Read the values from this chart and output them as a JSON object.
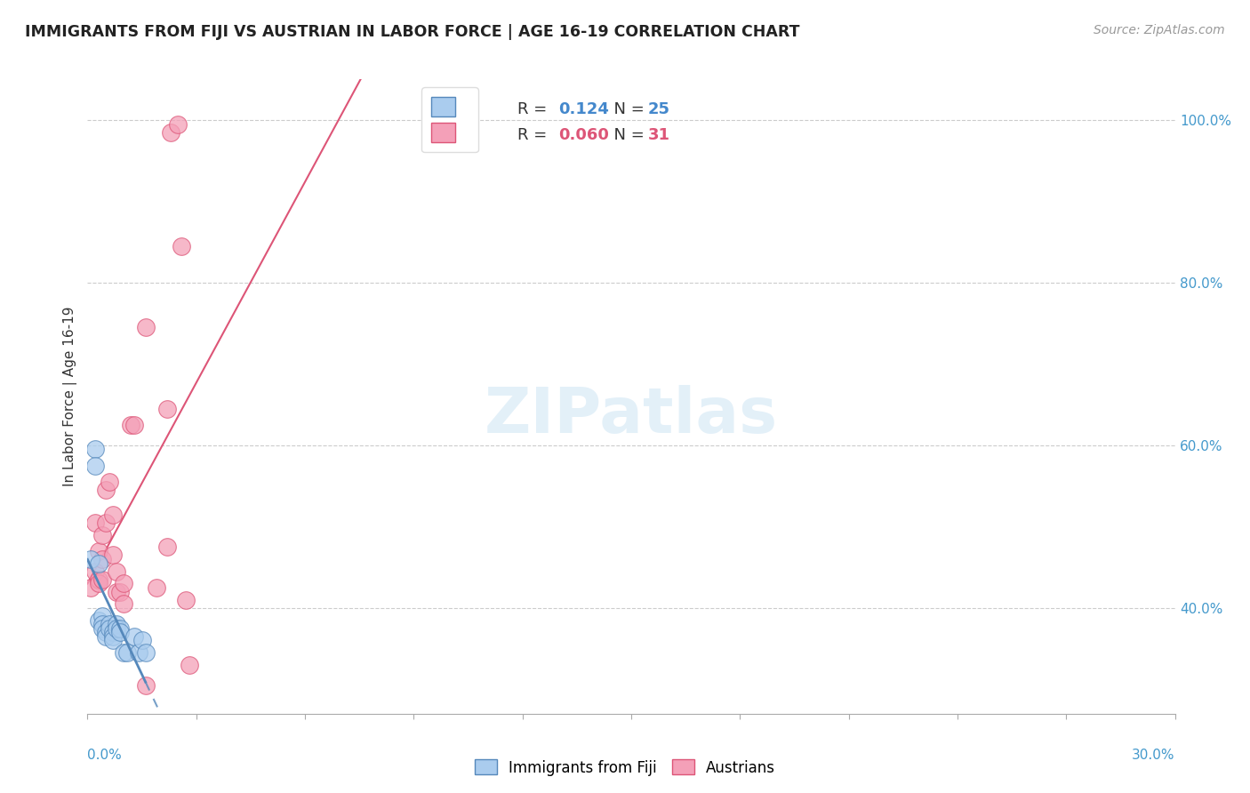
{
  "title": "IMMIGRANTS FROM FIJI VS AUSTRIAN IN LABOR FORCE | AGE 16-19 CORRELATION CHART",
  "source": "Source: ZipAtlas.com",
  "ylabel": "In Labor Force | Age 16-19",
  "xlim": [
    0.0,
    0.3
  ],
  "ylim": [
    0.27,
    1.05
  ],
  "fiji_R": 0.124,
  "fiji_N": 25,
  "austrian_R": 0.06,
  "austrian_N": 31,
  "fiji_color": "#aaccee",
  "austrian_color": "#f4a0b8",
  "fiji_line_color": "#5588bb",
  "austrian_line_color": "#dd5577",
  "fiji_points": [
    [
      0.001,
      0.46
    ],
    [
      0.002,
      0.595
    ],
    [
      0.002,
      0.575
    ],
    [
      0.003,
      0.385
    ],
    [
      0.003,
      0.455
    ],
    [
      0.004,
      0.39
    ],
    [
      0.004,
      0.38
    ],
    [
      0.004,
      0.375
    ],
    [
      0.005,
      0.37
    ],
    [
      0.005,
      0.365
    ],
    [
      0.006,
      0.38
    ],
    [
      0.006,
      0.375
    ],
    [
      0.007,
      0.37
    ],
    [
      0.007,
      0.365
    ],
    [
      0.007,
      0.36
    ],
    [
      0.008,
      0.38
    ],
    [
      0.008,
      0.375
    ],
    [
      0.009,
      0.375
    ],
    [
      0.009,
      0.37
    ],
    [
      0.01,
      0.345
    ],
    [
      0.011,
      0.345
    ],
    [
      0.013,
      0.365
    ],
    [
      0.014,
      0.345
    ],
    [
      0.015,
      0.36
    ],
    [
      0.016,
      0.345
    ]
  ],
  "austrian_points": [
    [
      0.001,
      0.425
    ],
    [
      0.002,
      0.505
    ],
    [
      0.002,
      0.445
    ],
    [
      0.003,
      0.435
    ],
    [
      0.003,
      0.47
    ],
    [
      0.003,
      0.43
    ],
    [
      0.004,
      0.49
    ],
    [
      0.004,
      0.46
    ],
    [
      0.004,
      0.435
    ],
    [
      0.005,
      0.545
    ],
    [
      0.005,
      0.505
    ],
    [
      0.006,
      0.555
    ],
    [
      0.007,
      0.465
    ],
    [
      0.007,
      0.515
    ],
    [
      0.008,
      0.445
    ],
    [
      0.008,
      0.42
    ],
    [
      0.009,
      0.42
    ],
    [
      0.01,
      0.405
    ],
    [
      0.01,
      0.43
    ],
    [
      0.012,
      0.625
    ],
    [
      0.013,
      0.625
    ],
    [
      0.016,
      0.745
    ],
    [
      0.016,
      0.305
    ],
    [
      0.022,
      0.645
    ],
    [
      0.022,
      0.475
    ],
    [
      0.023,
      0.985
    ],
    [
      0.025,
      0.995
    ],
    [
      0.026,
      0.845
    ],
    [
      0.019,
      0.425
    ],
    [
      0.027,
      0.41
    ],
    [
      0.028,
      0.33
    ]
  ],
  "watermark": "ZIPatlas",
  "legend_R_color_fiji": "#4488cc",
  "legend_N_color_fiji": "#4488cc",
  "legend_R_color_aust": "#dd5577",
  "legend_N_color_aust": "#dd5577"
}
